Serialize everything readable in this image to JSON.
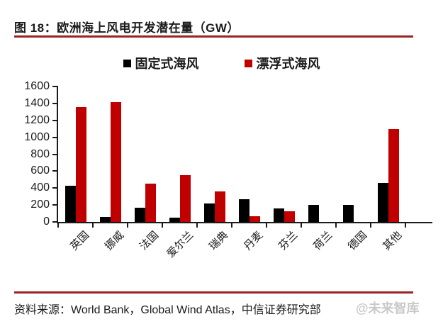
{
  "title": "图 18：欧洲海上风电开发潜在量（GW）",
  "source": "资料来源：World Bank，Global Wind Atlas，中信证券研究部",
  "watermark": "@未来智库",
  "colors": {
    "fixed_bar": "#000000",
    "floating_bar": "#c00000",
    "rule_line": "#9b2422",
    "axis": "#1a1a1a",
    "watermark_gray": "#c9c9c9"
  },
  "chart_data": {
    "type": "bar",
    "title": "图 18：欧洲海上风电开发潜在量（GW）",
    "xlabel": "",
    "ylabel": "",
    "categories": [
      "英国",
      "挪威",
      "法国",
      "爱尔兰",
      "瑞典",
      "丹麦",
      "芬兰",
      "荷兰",
      "德国",
      "其他"
    ],
    "series": [
      {
        "name": "固定式海风",
        "color": "#000000",
        "values": [
          430,
          60,
          170,
          50,
          220,
          265,
          160,
          205,
          200,
          460
        ]
      },
      {
        "name": "漂浮式海风",
        "color": "#c00000",
        "values": [
          1360,
          1420,
          450,
          555,
          360,
          70,
          125,
          0,
          0,
          1100
        ]
      }
    ],
    "ylim": [
      0,
      1600
    ],
    "yticks": [
      0,
      200,
      400,
      600,
      800,
      1000,
      1200,
      1400,
      1600
    ],
    "grid": false,
    "legend_position": "top"
  }
}
